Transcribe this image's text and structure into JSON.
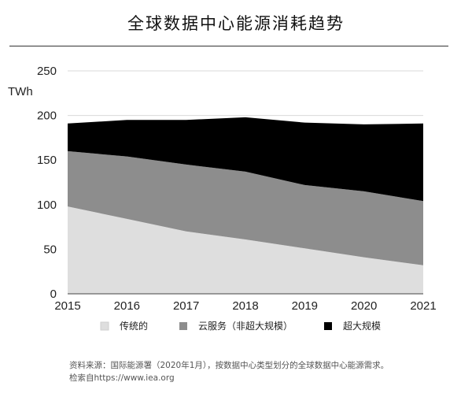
{
  "title": "全球数据中心能源消耗趋势",
  "source": {
    "line1": "资料来源：国际能源署（2020年1月），按数据中心类型划分的全球数据中心能源需求。",
    "line2": "检索自https://www.iea.org"
  },
  "chart_data": {
    "type": "area",
    "stacked": true,
    "ylabel": "TWh",
    "x": [
      "2015",
      "2016",
      "2017",
      "2018",
      "2019",
      "2020",
      "2021"
    ],
    "ylim": [
      0,
      250
    ],
    "yticks": [
      0,
      50,
      100,
      150,
      200,
      250
    ],
    "grid": true,
    "legend_position": "bottom",
    "series": [
      {
        "name": "传统的",
        "values": [
          98,
          84,
          70,
          61,
          51,
          41,
          32
        ],
        "color": "#dedede"
      },
      {
        "name": "云服务（非超大规模）",
        "values": [
          62,
          70,
          75,
          76,
          71,
          74,
          72
        ],
        "color": "#8d8d8d"
      },
      {
        "name": "超大规模",
        "values": [
          31,
          41,
          50,
          61,
          70,
          75,
          87
        ],
        "color": "#000000"
      }
    ]
  }
}
